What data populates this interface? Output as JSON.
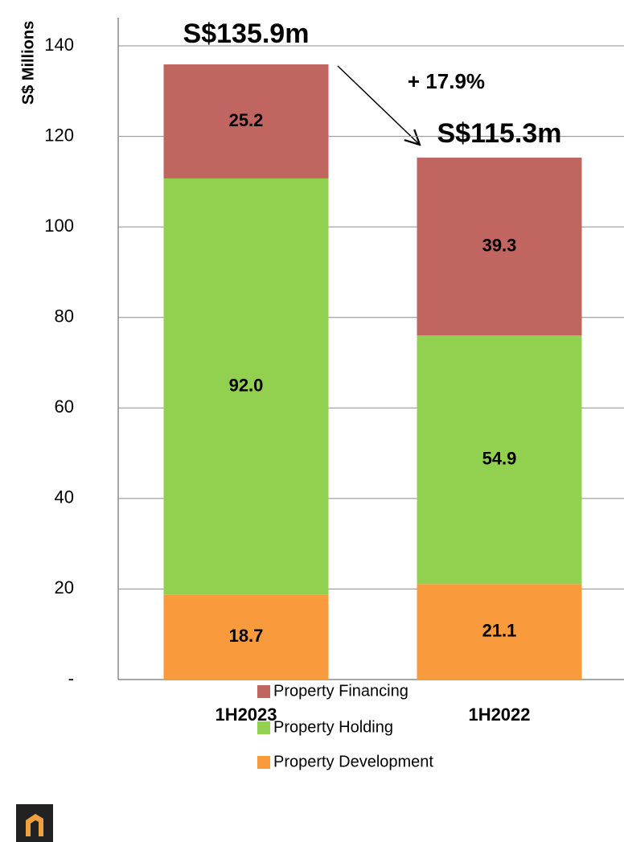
{
  "chart_data": {
    "type": "stacked_bar",
    "y_label": "S$ Millions",
    "categories": [
      "1H2023",
      "1H2022"
    ],
    "series": [
      {
        "name": "Property Development",
        "color": "#f99a3c",
        "values": [
          18.7,
          21.1
        ]
      },
      {
        "name": "Property Holding",
        "color": "#92d050",
        "values": [
          92.0,
          54.9
        ],
        "value_labels": [
          "92.0",
          "54.9"
        ]
      },
      {
        "name": "Property Financing",
        "color": "#c0655f",
        "values": [
          25.2,
          39.3
        ]
      }
    ],
    "totals": [
      135.9,
      115.3
    ],
    "total_labels": [
      "S$135.9m",
      "S$115.3m"
    ],
    "annotation": "+ 17.9%",
    "ylim": [
      0,
      140
    ],
    "yticks": [
      {
        "value": 0,
        "label": "-"
      },
      20,
      40,
      60,
      80,
      100,
      120,
      140
    ],
    "grid": true
  }
}
